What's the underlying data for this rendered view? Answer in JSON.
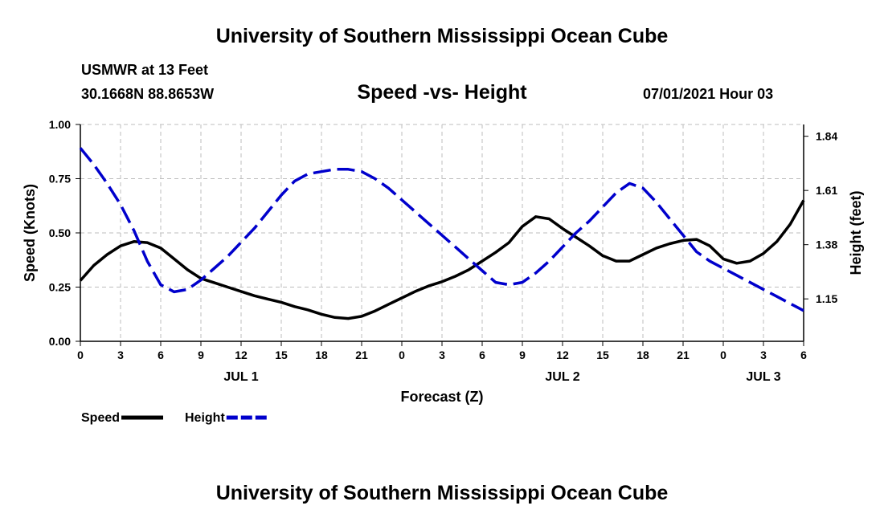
{
  "header": {
    "title": "University of Southern Mississippi Ocean Cube",
    "station": "USMWR at 13 Feet",
    "coords": "30.1668N  88.8653W",
    "subtitle": "Speed -vs- Height",
    "datetime": "07/01/2021 Hour 03"
  },
  "footer": {
    "title": "University of Southern Mississippi Ocean Cube"
  },
  "chart_data": {
    "type": "line",
    "title": "Speed -vs- Height",
    "xlabel": "Forecast (Z)",
    "ylabel_left": "Speed (Knots)",
    "ylabel_right": "Height (feet)",
    "x_range": [
      0,
      54
    ],
    "x_ticks": [
      0,
      3,
      6,
      9,
      12,
      15,
      18,
      21,
      24,
      27,
      30,
      33,
      36,
      39,
      42,
      45,
      48,
      51,
      54
    ],
    "x_tick_labels": [
      "0",
      "3",
      "6",
      "9",
      "12",
      "15",
      "18",
      "21",
      "0",
      "3",
      "6",
      "9",
      "12",
      "15",
      "18",
      "21",
      "0",
      "3",
      "6"
    ],
    "day_labels": [
      {
        "x": 12,
        "label": "JUL 1"
      },
      {
        "x": 36,
        "label": "JUL 2"
      },
      {
        "x": 51,
        "label": "JUL 3"
      }
    ],
    "y_left": {
      "min": 0,
      "max": 1,
      "ticks": [
        0,
        0.25,
        0.5,
        0.75,
        1.0
      ],
      "tick_labels": [
        "0.00",
        "0.25",
        "0.50",
        "0.75",
        "1.00"
      ]
    },
    "y_right": {
      "min": 0.97,
      "max": 1.89,
      "ticks": [
        1.15,
        1.38,
        1.61,
        1.84
      ],
      "tick_labels": [
        "1.15",
        "1.38",
        "1.61",
        "1.84"
      ]
    },
    "grid": true,
    "series": [
      {
        "name": "Speed",
        "axis": "left",
        "color": "#000000",
        "dash": "solid",
        "x": [
          0,
          1,
          2,
          3,
          4,
          5,
          6,
          7,
          8,
          9,
          10,
          11,
          12,
          13,
          14,
          15,
          16,
          17,
          18,
          19,
          20,
          21,
          22,
          23,
          24,
          25,
          26,
          27,
          28,
          29,
          30,
          31,
          32,
          33,
          34,
          35,
          36,
          37,
          38,
          39,
          40,
          41,
          42,
          43,
          44,
          45,
          46,
          47,
          48,
          49,
          50,
          51,
          52,
          53,
          54
        ],
        "values": [
          0.28,
          0.35,
          0.4,
          0.44,
          0.46,
          0.455,
          0.43,
          0.38,
          0.33,
          0.29,
          0.27,
          0.25,
          0.23,
          0.21,
          0.195,
          0.18,
          0.16,
          0.145,
          0.125,
          0.11,
          0.105,
          0.115,
          0.14,
          0.17,
          0.2,
          0.23,
          0.255,
          0.275,
          0.3,
          0.33,
          0.37,
          0.41,
          0.455,
          0.53,
          0.575,
          0.565,
          0.52,
          0.48,
          0.44,
          0.395,
          0.37,
          0.37,
          0.4,
          0.43,
          0.45,
          0.465,
          0.47,
          0.44,
          0.38,
          0.36,
          0.37,
          0.405,
          0.46,
          0.54,
          0.65
        ]
      },
      {
        "name": "Height",
        "axis": "right",
        "color": "#0000cc",
        "dash": "dashed",
        "x": [
          0,
          1,
          2,
          3,
          4,
          5,
          6,
          7,
          8,
          9,
          10,
          11,
          12,
          13,
          14,
          15,
          16,
          17,
          18,
          19,
          20,
          21,
          22,
          23,
          24,
          25,
          26,
          27,
          28,
          29,
          30,
          31,
          32,
          33,
          34,
          35,
          36,
          37,
          38,
          39,
          40,
          41,
          42,
          43,
          44,
          45,
          46,
          47,
          48,
          49,
          50,
          51,
          52,
          53,
          54
        ],
        "values": [
          1.79,
          1.72,
          1.64,
          1.55,
          1.44,
          1.31,
          1.21,
          1.18,
          1.19,
          1.23,
          1.28,
          1.33,
          1.39,
          1.45,
          1.52,
          1.59,
          1.65,
          1.68,
          1.69,
          1.7,
          1.7,
          1.69,
          1.66,
          1.62,
          1.57,
          1.52,
          1.47,
          1.42,
          1.37,
          1.32,
          1.27,
          1.22,
          1.21,
          1.22,
          1.26,
          1.31,
          1.37,
          1.43,
          1.48,
          1.54,
          1.6,
          1.64,
          1.62,
          1.56,
          1.49,
          1.42,
          1.35,
          1.31,
          1.28,
          1.25,
          1.22,
          1.19,
          1.16,
          1.13,
          1.1
        ]
      }
    ],
    "legend": {
      "placement": "bottom-left",
      "entries": [
        "Speed",
        "Height"
      ]
    }
  }
}
